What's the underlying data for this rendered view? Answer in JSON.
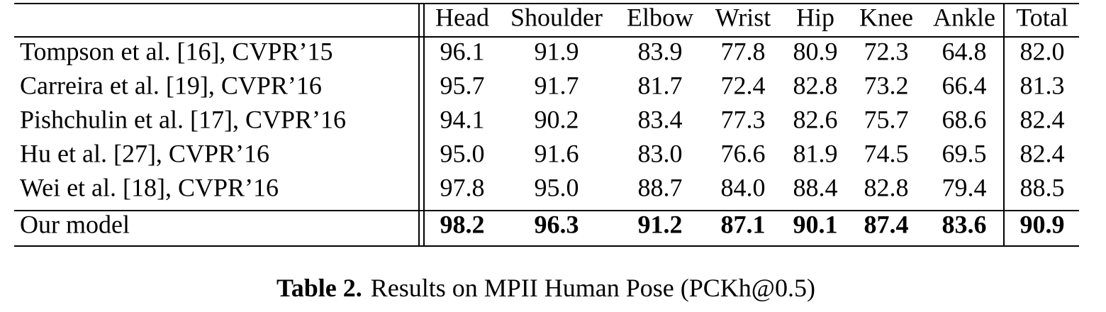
{
  "table": {
    "header": [
      "Head",
      "Shoulder",
      "Elbow",
      "Wrist",
      "Hip",
      "Knee",
      "Ankle",
      "Total"
    ],
    "rows": [
      {
        "method": "Tompson et al. [16], CVPR’15",
        "values": [
          "96.1",
          "91.9",
          "83.9",
          "77.8",
          "80.9",
          "72.3",
          "64.8",
          "82.0"
        ]
      },
      {
        "method": "Carreira et al. [19], CVPR’16",
        "values": [
          "95.7",
          "91.7",
          "81.7",
          "72.4",
          "82.8",
          "73.2",
          "66.4",
          "81.3"
        ]
      },
      {
        "method": "Pishchulin et al. [17], CVPR’16",
        "values": [
          "94.1",
          "90.2",
          "83.4",
          "77.3",
          "82.6",
          "75.7",
          "68.6",
          "82.4"
        ]
      },
      {
        "method": "Hu et al. [27], CVPR’16",
        "values": [
          "95.0",
          "91.6",
          "83.0",
          "76.6",
          "81.9",
          "74.5",
          "69.5",
          "82.4"
        ]
      },
      {
        "method": "Wei et al. [18], CVPR’16",
        "values": [
          "97.8",
          "95.0",
          "88.7",
          "84.0",
          "88.4",
          "82.8",
          "79.4",
          "88.5"
        ]
      },
      {
        "method": "Our model",
        "values": [
          "98.2",
          "96.3",
          "91.2",
          "87.1",
          "90.1",
          "87.4",
          "83.6",
          "90.9"
        ],
        "bold": true
      }
    ]
  },
  "caption": {
    "label": "Table 2.",
    "text": "Results on MPII Human Pose (PCKh@0.5)"
  }
}
